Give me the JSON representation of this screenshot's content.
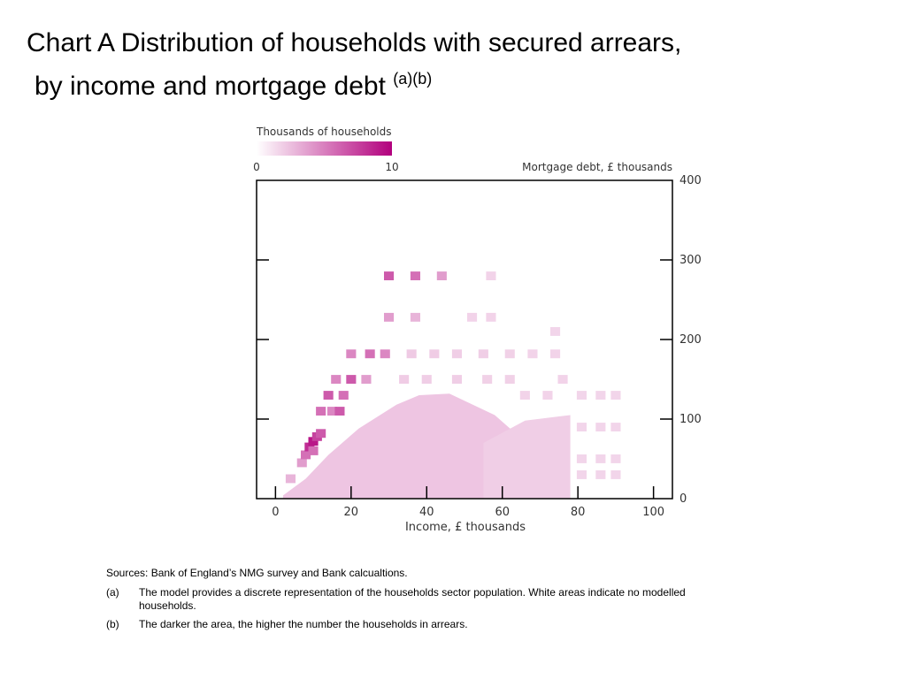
{
  "title": {
    "line1": "Chart A  Distribution of households with secured arrears,",
    "line2": "by income and mortgage debt",
    "superscript": "(a)(b)"
  },
  "colors": {
    "accent": "#b2007d",
    "light": "#f1dbee",
    "axis": "#000000",
    "text": "#333333"
  },
  "chart_data": {
    "type": "heatmap",
    "legend": {
      "title": "Thousands of households",
      "min": 0,
      "max": 10,
      "min_label": "0",
      "max_label": "10",
      "placement": "top-left"
    },
    "x_axis": {
      "label": "Income, £ thousands",
      "range": [
        -5,
        105
      ],
      "ticks": [
        0,
        20,
        40,
        60,
        80,
        100
      ],
      "tick_labels": [
        "0",
        "20",
        "40",
        "60",
        "80",
        "100"
      ]
    },
    "y_axis": {
      "label": "Mortgage debt, £ thousands",
      "range": [
        0,
        400
      ],
      "ticks": [
        0,
        100,
        200,
        300,
        400
      ],
      "tick_labels": [
        "0",
        "100",
        "200",
        "300",
        "400"
      ],
      "side": "right"
    },
    "grid": false,
    "regions": [
      {
        "points": [
          [
            2,
            4
          ],
          [
            8,
            25
          ],
          [
            14,
            55
          ],
          [
            22,
            88
          ],
          [
            32,
            118
          ],
          [
            38,
            130
          ],
          [
            46,
            132
          ],
          [
            58,
            105
          ],
          [
            64,
            80
          ],
          [
            66,
            55
          ],
          [
            64,
            25
          ],
          [
            60,
            0
          ],
          [
            2,
            0
          ]
        ],
        "value": 1.2
      },
      {
        "points": [
          [
            55,
            70
          ],
          [
            66,
            98
          ],
          [
            78,
            105
          ],
          [
            78,
            0
          ],
          [
            55,
            0
          ]
        ],
        "value": 0.8
      }
    ],
    "cells": [
      {
        "x": 4,
        "y": 25,
        "v": 2
      },
      {
        "x": 7,
        "y": 45,
        "v": 3
      },
      {
        "x": 8,
        "y": 55,
        "v": 5
      },
      {
        "x": 9,
        "y": 65,
        "v": 8
      },
      {
        "x": 10,
        "y": 72,
        "v": 9
      },
      {
        "x": 11,
        "y": 78,
        "v": 7
      },
      {
        "x": 12,
        "y": 82,
        "v": 6
      },
      {
        "x": 10,
        "y": 60,
        "v": 5
      },
      {
        "x": 12,
        "y": 110,
        "v": 5
      },
      {
        "x": 15,
        "y": 110,
        "v": 4
      },
      {
        "x": 17,
        "y": 110,
        "v": 6
      },
      {
        "x": 14,
        "y": 130,
        "v": 6
      },
      {
        "x": 18,
        "y": 130,
        "v": 5
      },
      {
        "x": 16,
        "y": 150,
        "v": 4
      },
      {
        "x": 20,
        "y": 150,
        "v": 6
      },
      {
        "x": 24,
        "y": 150,
        "v": 3
      },
      {
        "x": 20,
        "y": 182,
        "v": 4
      },
      {
        "x": 25,
        "y": 182,
        "v": 5
      },
      {
        "x": 29,
        "y": 182,
        "v": 4
      },
      {
        "x": 30,
        "y": 228,
        "v": 3
      },
      {
        "x": 37,
        "y": 228,
        "v": 2
      },
      {
        "x": 30,
        "y": 280,
        "v": 6
      },
      {
        "x": 37,
        "y": 280,
        "v": 5
      },
      {
        "x": 44,
        "y": 280,
        "v": 3
      },
      {
        "x": 57,
        "y": 280,
        "v": 0.6
      },
      {
        "x": 52,
        "y": 228,
        "v": 0.6
      },
      {
        "x": 57,
        "y": 228,
        "v": 0.6
      },
      {
        "x": 36,
        "y": 182,
        "v": 1
      },
      {
        "x": 42,
        "y": 182,
        "v": 0.9
      },
      {
        "x": 48,
        "y": 182,
        "v": 0.8
      },
      {
        "x": 55,
        "y": 182,
        "v": 0.8
      },
      {
        "x": 62,
        "y": 182,
        "v": 0.7
      },
      {
        "x": 68,
        "y": 182,
        "v": 0.6
      },
      {
        "x": 74,
        "y": 182,
        "v": 0.6
      },
      {
        "x": 34,
        "y": 150,
        "v": 0.9
      },
      {
        "x": 40,
        "y": 150,
        "v": 0.8
      },
      {
        "x": 48,
        "y": 150,
        "v": 0.8
      },
      {
        "x": 56,
        "y": 150,
        "v": 0.7
      },
      {
        "x": 62,
        "y": 150,
        "v": 0.7
      },
      {
        "x": 66,
        "y": 130,
        "v": 0.6
      },
      {
        "x": 72,
        "y": 130,
        "v": 0.6
      },
      {
        "x": 76,
        "y": 150,
        "v": 0.6
      },
      {
        "x": 81,
        "y": 130,
        "v": 0.5
      },
      {
        "x": 86,
        "y": 130,
        "v": 0.5
      },
      {
        "x": 90,
        "y": 130,
        "v": 0.5
      },
      {
        "x": 81,
        "y": 90,
        "v": 0.5
      },
      {
        "x": 86,
        "y": 90,
        "v": 0.5
      },
      {
        "x": 90,
        "y": 90,
        "v": 0.5
      },
      {
        "x": 81,
        "y": 50,
        "v": 0.5
      },
      {
        "x": 86,
        "y": 50,
        "v": 0.5
      },
      {
        "x": 90,
        "y": 50,
        "v": 0.5
      },
      {
        "x": 81,
        "y": 30,
        "v": 0.5
      },
      {
        "x": 86,
        "y": 30,
        "v": 0.5
      },
      {
        "x": 90,
        "y": 30,
        "v": 0.5
      },
      {
        "x": 74,
        "y": 210,
        "v": 0.5
      }
    ]
  },
  "notes": {
    "sources": "Sources: Bank of England’s NMG survey and Bank calcualtions.",
    "items": [
      {
        "label": "(a)",
        "text": "The model provides a discrete representation of the households sector population. White areas indicate no modelled households."
      },
      {
        "label": "(b)",
        "text": "The darker the area, the higher the number the households in arrears."
      }
    ]
  }
}
